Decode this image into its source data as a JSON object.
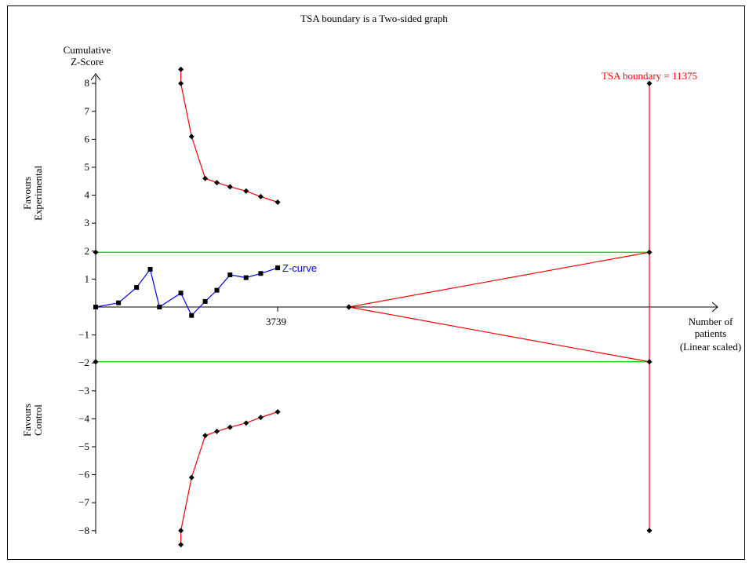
{
  "chart_data": {
    "type": "line",
    "title": "TSA boundary is a Two-sided graph",
    "ylabel_line1": "Cumulative",
    "ylabel_line2": "Z-Score",
    "xlabel_line1": "Number of",
    "xlabel_line2": "patients",
    "xlabel_line3": "(Linear scaled)",
    "favours_top_line1": "Favours",
    "favours_top_line2": "Experimental",
    "favours_bottom_line1": "Favours",
    "favours_bottom_line2": "Control",
    "xlim": [
      0,
      12500
    ],
    "ylim": [
      -8,
      8
    ],
    "yticks": [
      8,
      7,
      6,
      5,
      4,
      3,
      2,
      1,
      -1,
      -2,
      -3,
      -4,
      -5,
      -6,
      -7,
      -8
    ],
    "x_tick_label": "3739",
    "x_tick_value": 3739,
    "tsa_boundary_label": "TSA boundary = 11375",
    "tsa_boundary_value": 11375,
    "colors": {
      "boundary": "#ff0000",
      "conventional": "#00cc00",
      "zcurve": "#0000ff",
      "axis": "#000000"
    },
    "series": [
      {
        "name": "Z-curve",
        "x": [
          0,
          470,
          840,
          1120,
          1310,
          1750,
          1970,
          2250,
          2490,
          2760,
          3090,
          3390,
          3739
        ],
        "y": [
          0,
          0.15,
          0.7,
          1.35,
          0.0,
          0.5,
          -0.3,
          0.2,
          0.6,
          1.15,
          1.05,
          1.2,
          1.4
        ]
      },
      {
        "name": "upper-alpha-spending",
        "x": [
          1750,
          1750,
          1970,
          2250,
          2490,
          2760,
          3090,
          3390,
          3739
        ],
        "y": [
          8.5,
          8.0,
          6.1,
          4.6,
          4.45,
          4.3,
          4.15,
          3.95,
          3.75
        ]
      },
      {
        "name": "lower-alpha-spending",
        "x": [
          1750,
          1750,
          1970,
          2250,
          2490,
          2760,
          3090,
          3390,
          3739
        ],
        "y": [
          -8.5,
          -8.0,
          -6.1,
          -4.6,
          -4.45,
          -4.3,
          -4.15,
          -3.95,
          -3.75
        ]
      },
      {
        "name": "upper-futility",
        "x": [
          5200,
          11375
        ],
        "y": [
          0,
          1.96
        ]
      },
      {
        "name": "lower-futility",
        "x": [
          5200,
          11375
        ],
        "y": [
          0,
          -1.96
        ]
      },
      {
        "name": "conventional-upper",
        "x": [
          0,
          11375
        ],
        "y": [
          1.96,
          1.96
        ]
      },
      {
        "name": "conventional-lower",
        "x": [
          0,
          11375
        ],
        "y": [
          -1.96,
          -1.96
        ]
      },
      {
        "name": "tsa-vertical",
        "x": [
          11375,
          11375
        ],
        "y": [
          8,
          -8
        ]
      }
    ],
    "zcurve_label": "Z-curve",
    "grid": false,
    "legend": "none"
  }
}
